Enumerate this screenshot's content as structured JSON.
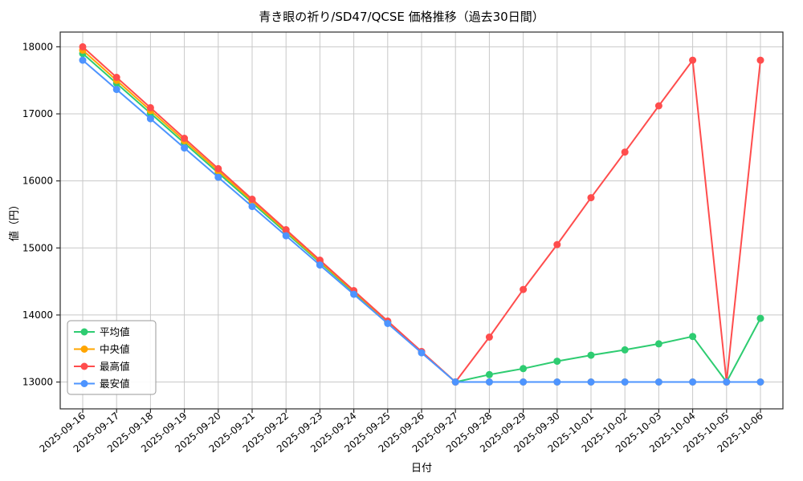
{
  "chart_data": {
    "type": "line",
    "title": "青き眼の祈り/SD47/QCSE 価格推移（過去30日間）",
    "xlabel": "日付",
    "ylabel": "値（円）",
    "grid": true,
    "legend_position": "lower left",
    "ylim": [
      12600,
      18220
    ],
    "yticks": [
      13000,
      14000,
      15000,
      16000,
      17000,
      18000
    ],
    "x": [
      "2025-09-16",
      "2025-09-17",
      "2025-09-18",
      "2025-09-19",
      "2025-09-20",
      "2025-09-21",
      "2025-09-22",
      "2025-09-23",
      "2025-09-24",
      "2025-09-25",
      "2025-09-26",
      "2025-09-27",
      "2025-09-28",
      "2025-09-29",
      "2025-09-30",
      "2025-10-01",
      "2025-10-02",
      "2025-10-03",
      "2025-10-04",
      "2025-10-05",
      "2025-10-06"
    ],
    "series": [
      {
        "name": "平均値",
        "color": "#2ecc71",
        "values": [
          17900,
          17455,
          17009,
          16564,
          16118,
          15673,
          15227,
          14782,
          14336,
          13891,
          13445,
          13000,
          13110,
          13200,
          13310,
          13400,
          13480,
          13570,
          13680,
          13000,
          13950
        ]
      },
      {
        "name": "中央値",
        "color": "#ffa500",
        "values": [
          17950,
          17500,
          17050,
          16600,
          16150,
          15700,
          15250,
          14800,
          14350,
          13900,
          13450,
          13000,
          13000,
          13000,
          13000,
          13000,
          13000,
          13000,
          13000,
          13000,
          13000
        ]
      },
      {
        "name": "最高値",
        "color": "#ff4d4d",
        "values": [
          18000,
          17545,
          17091,
          16636,
          16182,
          15727,
          15273,
          14818,
          14364,
          13909,
          13455,
          13000,
          13670,
          14380,
          15050,
          15750,
          16430,
          17120,
          17800,
          13000,
          17800
        ]
      },
      {
        "name": "最安値",
        "color": "#4d94ff",
        "values": [
          17800,
          17364,
          16927,
          16491,
          16055,
          15618,
          15182,
          14745,
          14309,
          13873,
          13436,
          13000,
          13000,
          13000,
          13000,
          13000,
          13000,
          13000,
          13000,
          13000,
          13000
        ]
      }
    ]
  },
  "style": {
    "grid_color": "#c8c8c8",
    "spine_color": "#2b2b2b",
    "legend_border_color": "#999999",
    "background": "#ffffff"
  }
}
